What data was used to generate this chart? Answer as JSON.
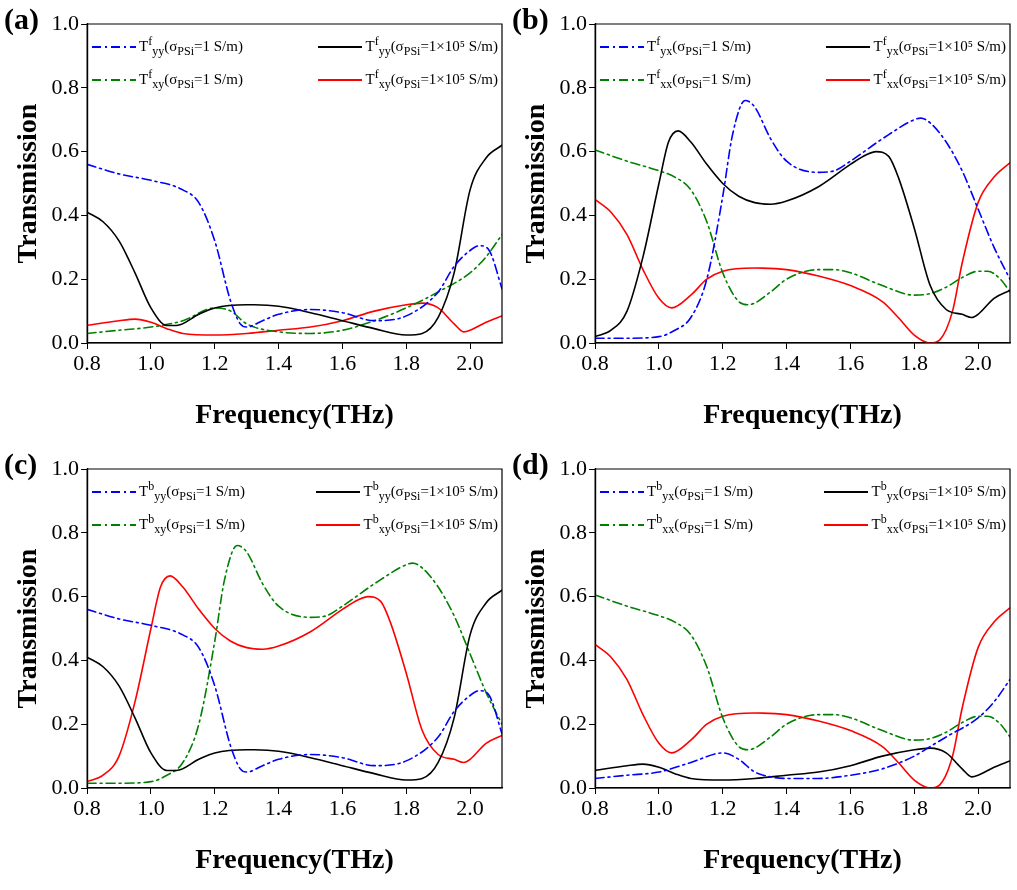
{
  "chart_data": [
    {
      "type": "line",
      "title": "(a)",
      "xlabel": "Frequency(THz)",
      "ylabel": "Transmission",
      "xlim": [
        0.8,
        2.1
      ],
      "ylim": [
        0,
        1
      ],
      "xticks": [
        {
          "value": 0.8,
          "label": "0.8"
        },
        {
          "value": 1,
          "label": "1.0"
        },
        {
          "value": 1.2,
          "label": "1.2"
        },
        {
          "value": 1.4,
          "label": "1.4"
        },
        {
          "value": 1.6,
          "label": "1.6"
        },
        {
          "value": 1.8,
          "label": "1.8"
        },
        {
          "value": 2,
          "label": "2.0"
        }
      ],
      "yticks": [
        {
          "value": 0,
          "label": "0.0"
        },
        {
          "value": 0.2,
          "label": "0.2"
        },
        {
          "value": 0.4,
          "label": "0.4"
        },
        {
          "value": 0.6,
          "label": "0.6"
        },
        {
          "value": 0.8,
          "label": "0.8"
        },
        {
          "value": 1,
          "label": "1.0"
        }
      ],
      "grid": false,
      "legend": "top",
      "marker": "none",
      "series": [
        {
          "name": "T$^{f}$$_{yy}$(σ$_{PSi}$=1 S/m)",
          "color": "#0000ff",
          "line_style": "dashed",
          "x": [
            0.8,
            0.9,
            1.0,
            1.1,
            1.15,
            1.2,
            1.25,
            1.28,
            1.3,
            1.35,
            1.4,
            1.5,
            1.6,
            1.7,
            1.8,
            1.9,
            1.95,
            2.0,
            2.03,
            2.06,
            2.1
          ],
          "values": [
            0.56,
            0.53,
            0.51,
            0.48,
            0.44,
            0.32,
            0.13,
            0.06,
            0.05,
            0.07,
            0.09,
            0.105,
            0.095,
            0.07,
            0.085,
            0.16,
            0.24,
            0.29,
            0.305,
            0.29,
            0.17
          ]
        },
        {
          "name": "T$^{f}$$_{yy}$(σ$_{PSi}$=1×10⁵ S/m)",
          "color": "#000000",
          "line_style": "solid",
          "x": [
            0.8,
            0.85,
            0.9,
            0.95,
            1.0,
            1.05,
            1.08,
            1.15,
            1.2,
            1.3,
            1.4,
            1.5,
            1.6,
            1.7,
            1.8,
            1.85,
            1.9,
            1.95,
            2.0,
            2.05,
            2.1
          ],
          "values": [
            0.41,
            0.38,
            0.32,
            0.22,
            0.11,
            0.055,
            0.055,
            0.09,
            0.11,
            0.12,
            0.115,
            0.095,
            0.07,
            0.045,
            0.025,
            0.03,
            0.08,
            0.22,
            0.48,
            0.58,
            0.62
          ]
        },
        {
          "name": "T$^{f}$$_{xy}$(σ$_{PSi}$=1 S/m)",
          "color": "#008000",
          "line_style": "dashed",
          "x": [
            0.8,
            0.9,
            1.0,
            1.1,
            1.2,
            1.25,
            1.3,
            1.4,
            1.5,
            1.6,
            1.7,
            1.8,
            1.9,
            2.0,
            2.05,
            2.1
          ],
          "values": [
            0.03,
            0.04,
            0.05,
            0.07,
            0.11,
            0.1,
            0.06,
            0.035,
            0.03,
            0.04,
            0.07,
            0.11,
            0.16,
            0.22,
            0.27,
            0.34
          ]
        },
        {
          "name": "T$^{f}$$_{xy}$(σ$_{PSi}$=1×10⁵ S/m)",
          "color": "#ff0000",
          "line_style": "solid",
          "x": [
            0.8,
            0.9,
            0.95,
            1.0,
            1.05,
            1.1,
            1.2,
            1.3,
            1.4,
            1.5,
            1.6,
            1.7,
            1.8,
            1.85,
            1.9,
            1.95,
            1.98,
            2.0,
            2.05,
            2.1
          ],
          "values": [
            0.055,
            0.07,
            0.075,
            0.065,
            0.045,
            0.03,
            0.025,
            0.03,
            0.04,
            0.05,
            0.07,
            0.1,
            0.12,
            0.125,
            0.11,
            0.06,
            0.035,
            0.04,
            0.065,
            0.085
          ]
        }
      ]
    },
    {
      "type": "line",
      "title": "(b)",
      "xlabel": "Frequency(THz)",
      "ylabel": "Transmission",
      "xlim": [
        0.8,
        2.1
      ],
      "ylim": [
        0,
        1
      ],
      "xticks": [
        {
          "value": 0.8,
          "label": "0.8"
        },
        {
          "value": 1,
          "label": "1.0"
        },
        {
          "value": 1.2,
          "label": "1.2"
        },
        {
          "value": 1.4,
          "label": "1.4"
        },
        {
          "value": 1.6,
          "label": "1.6"
        },
        {
          "value": 1.8,
          "label": "1.8"
        },
        {
          "value": 2,
          "label": "2.0"
        }
      ],
      "yticks": [
        {
          "value": 0,
          "label": "0.0"
        },
        {
          "value": 0.2,
          "label": "0.2"
        },
        {
          "value": 0.4,
          "label": "0.4"
        },
        {
          "value": 0.6,
          "label": "0.6"
        },
        {
          "value": 0.8,
          "label": "0.8"
        },
        {
          "value": 1,
          "label": "1.0"
        }
      ],
      "grid": false,
      "legend": "top",
      "marker": "none",
      "series": [
        {
          "name": "T$^{f}$$_{yx}$(σ$_{PSi}$=1 S/m)",
          "color": "#0000ff",
          "line_style": "dashed",
          "x": [
            0.8,
            0.9,
            1.0,
            1.05,
            1.1,
            1.15,
            1.2,
            1.23,
            1.27,
            1.3,
            1.35,
            1.4,
            1.5,
            1.55,
            1.6,
            1.7,
            1.8,
            1.82,
            1.85,
            1.9,
            1.95,
            2.0,
            2.05,
            2.1
          ],
          "values": [
            0.015,
            0.015,
            0.02,
            0.04,
            0.08,
            0.2,
            0.46,
            0.65,
            0.76,
            0.74,
            0.64,
            0.57,
            0.535,
            0.54,
            0.57,
            0.64,
            0.7,
            0.705,
            0.69,
            0.63,
            0.54,
            0.42,
            0.3,
            0.2
          ]
        },
        {
          "name": "T$^{f}$$_{yx}$(σ$_{PSi}$=1×10⁵ S/m)",
          "color": "#000000",
          "line_style": "solid",
          "x": [
            0.8,
            0.85,
            0.9,
            0.95,
            1.0,
            1.03,
            1.06,
            1.1,
            1.15,
            1.2,
            1.25,
            1.3,
            1.35,
            1.4,
            1.5,
            1.6,
            1.65,
            1.68,
            1.72,
            1.75,
            1.8,
            1.85,
            1.9,
            1.95,
            1.98,
            2.0,
            2.05,
            2.1
          ],
          "values": [
            0.02,
            0.04,
            0.1,
            0.27,
            0.5,
            0.63,
            0.665,
            0.63,
            0.56,
            0.5,
            0.46,
            0.44,
            0.435,
            0.445,
            0.49,
            0.56,
            0.59,
            0.6,
            0.585,
            0.52,
            0.36,
            0.18,
            0.105,
            0.09,
            0.08,
            0.09,
            0.14,
            0.165
          ]
        },
        {
          "name": "T$^{f}$$_{xx}$(σ$_{PSi}$=1 S/m)",
          "color": "#008000",
          "line_style": "dashed",
          "x": [
            0.8,
            0.9,
            1.0,
            1.05,
            1.1,
            1.15,
            1.2,
            1.25,
            1.28,
            1.35,
            1.4,
            1.5,
            1.55,
            1.6,
            1.7,
            1.8,
            1.85,
            1.9,
            1.95,
            2.0,
            2.03,
            2.07,
            2.1
          ],
          "values": [
            0.605,
            0.57,
            0.54,
            0.52,
            0.48,
            0.38,
            0.22,
            0.13,
            0.12,
            0.16,
            0.2,
            0.23,
            0.23,
            0.22,
            0.18,
            0.15,
            0.155,
            0.175,
            0.205,
            0.225,
            0.225,
            0.2,
            0.16
          ]
        },
        {
          "name": "T$^{f}$$_{xx}$(σ$_{PSi}$=1×10⁵ S/m)",
          "color": "#ff0000",
          "line_style": "solid",
          "x": [
            0.8,
            0.85,
            0.9,
            0.95,
            1.0,
            1.04,
            1.1,
            1.15,
            1.2,
            1.3,
            1.4,
            1.5,
            1.6,
            1.7,
            1.75,
            1.8,
            1.85,
            1.88,
            1.92,
            1.95,
            2.0,
            2.05,
            2.1
          ],
          "values": [
            0.45,
            0.41,
            0.34,
            0.23,
            0.14,
            0.11,
            0.15,
            0.2,
            0.225,
            0.235,
            0.23,
            0.21,
            0.18,
            0.13,
            0.08,
            0.025,
            0.0,
            0.01,
            0.1,
            0.25,
            0.44,
            0.52,
            0.565
          ]
        }
      ]
    },
    {
      "type": "line",
      "title": "(c)",
      "xlabel": "Frequency(THz)",
      "ylabel": "Transmission",
      "xlim": [
        0.8,
        2.1
      ],
      "ylim": [
        0,
        1
      ],
      "xticks": [
        {
          "value": 0.8,
          "label": "0.8"
        },
        {
          "value": 1,
          "label": "1.0"
        },
        {
          "value": 1.2,
          "label": "1.2"
        },
        {
          "value": 1.4,
          "label": "1.4"
        },
        {
          "value": 1.6,
          "label": "1.6"
        },
        {
          "value": 1.8,
          "label": "1.8"
        },
        {
          "value": 2,
          "label": "2.0"
        }
      ],
      "yticks": [
        {
          "value": 0,
          "label": "0.0"
        },
        {
          "value": 0.2,
          "label": "0.2"
        },
        {
          "value": 0.4,
          "label": "0.4"
        },
        {
          "value": 0.6,
          "label": "0.6"
        },
        {
          "value": 0.8,
          "label": "0.8"
        },
        {
          "value": 1,
          "label": "1.0"
        }
      ],
      "grid": false,
      "legend": "top",
      "marker": "none",
      "series": [
        {
          "name": "T$^{b}$$_{yy}$(σ$_{PSi}$=1 S/m)",
          "color": "#0000ff",
          "line_style": "dashed",
          "x": [
            0.8,
            0.9,
            1.0,
            1.1,
            1.15,
            1.2,
            1.25,
            1.28,
            1.3,
            1.35,
            1.4,
            1.5,
            1.6,
            1.7,
            1.8,
            1.9,
            1.95,
            2.0,
            2.03,
            2.06,
            2.1
          ],
          "values": [
            0.56,
            0.53,
            0.51,
            0.48,
            0.44,
            0.32,
            0.13,
            0.06,
            0.05,
            0.07,
            0.09,
            0.105,
            0.095,
            0.07,
            0.085,
            0.16,
            0.24,
            0.29,
            0.305,
            0.29,
            0.17
          ]
        },
        {
          "name": "T$^{b}$$_{yy}$(σ$_{PSi}$=1×10⁵ S/m)",
          "color": "#000000",
          "line_style": "solid",
          "x": [
            0.8,
            0.85,
            0.9,
            0.95,
            1.0,
            1.05,
            1.08,
            1.15,
            1.2,
            1.3,
            1.4,
            1.5,
            1.6,
            1.7,
            1.8,
            1.85,
            1.9,
            1.95,
            2.0,
            2.05,
            2.1
          ],
          "values": [
            0.41,
            0.38,
            0.32,
            0.22,
            0.11,
            0.055,
            0.055,
            0.09,
            0.11,
            0.12,
            0.115,
            0.095,
            0.07,
            0.045,
            0.025,
            0.03,
            0.08,
            0.22,
            0.48,
            0.58,
            0.62
          ]
        },
        {
          "name": "T$^{b}$$_{xy}$(σ$_{PSi}$=1 S/m)",
          "color": "#008000",
          "line_style": "dashed",
          "x": [
            0.8,
            0.9,
            1.0,
            1.05,
            1.1,
            1.15,
            1.2,
            1.23,
            1.27,
            1.3,
            1.35,
            1.4,
            1.5,
            1.55,
            1.6,
            1.7,
            1.8,
            1.82,
            1.85,
            1.9,
            1.95,
            2.0,
            2.05,
            2.1
          ],
          "values": [
            0.015,
            0.015,
            0.02,
            0.04,
            0.08,
            0.2,
            0.46,
            0.65,
            0.76,
            0.74,
            0.64,
            0.57,
            0.535,
            0.54,
            0.57,
            0.64,
            0.7,
            0.705,
            0.69,
            0.63,
            0.54,
            0.42,
            0.3,
            0.2
          ]
        },
        {
          "name": "T$^{b}$$_{xy}$(σ$_{PSi}$=1×10⁵ S/m)",
          "color": "#ff0000",
          "line_style": "solid",
          "x": [
            0.8,
            0.85,
            0.9,
            0.95,
            1.0,
            1.03,
            1.06,
            1.1,
            1.15,
            1.2,
            1.25,
            1.3,
            1.35,
            1.4,
            1.5,
            1.6,
            1.65,
            1.68,
            1.72,
            1.75,
            1.8,
            1.85,
            1.9,
            1.95,
            1.98,
            2.0,
            2.05,
            2.1
          ],
          "values": [
            0.02,
            0.04,
            0.1,
            0.27,
            0.5,
            0.63,
            0.665,
            0.63,
            0.56,
            0.5,
            0.46,
            0.44,
            0.435,
            0.445,
            0.49,
            0.56,
            0.59,
            0.6,
            0.585,
            0.52,
            0.36,
            0.18,
            0.105,
            0.09,
            0.08,
            0.09,
            0.14,
            0.165
          ]
        }
      ]
    },
    {
      "type": "line",
      "title": "(d)",
      "xlabel": "Frequency(THz)",
      "ylabel": "Transmission",
      "xlim": [
        0.8,
        2.1
      ],
      "ylim": [
        0,
        1
      ],
      "xticks": [
        {
          "value": 0.8,
          "label": "0.8"
        },
        {
          "value": 1,
          "label": "1.0"
        },
        {
          "value": 1.2,
          "label": "1.2"
        },
        {
          "value": 1.4,
          "label": "1.4"
        },
        {
          "value": 1.6,
          "label": "1.6"
        },
        {
          "value": 1.8,
          "label": "1.8"
        },
        {
          "value": 2,
          "label": "2.0"
        }
      ],
      "yticks": [
        {
          "value": 0,
          "label": "0.0"
        },
        {
          "value": 0.2,
          "label": "0.2"
        },
        {
          "value": 0.4,
          "label": "0.4"
        },
        {
          "value": 0.6,
          "label": "0.6"
        },
        {
          "value": 0.8,
          "label": "0.8"
        },
        {
          "value": 1,
          "label": "1.0"
        }
      ],
      "grid": false,
      "legend": "top",
      "marker": "none",
      "series": [
        {
          "name": "T$^{b}$$_{yx}$(σ$_{PSi}$=1 S/m)",
          "color": "#0000ff",
          "line_style": "dashed",
          "x": [
            0.8,
            0.9,
            1.0,
            1.1,
            1.2,
            1.25,
            1.3,
            1.35,
            1.4,
            1.5,
            1.6,
            1.7,
            1.8,
            1.85,
            1.9,
            2.0,
            2.05,
            2.1
          ],
          "values": [
            0.03,
            0.04,
            0.05,
            0.08,
            0.11,
            0.09,
            0.05,
            0.035,
            0.03,
            0.03,
            0.04,
            0.06,
            0.1,
            0.13,
            0.16,
            0.22,
            0.27,
            0.34
          ]
        },
        {
          "name": "T$^{b}$$_{yx}$(σ$_{PSi}$=1×10⁵ S/m)",
          "color": "#000000",
          "line_style": "solid",
          "x": [
            0.8,
            0.9,
            0.95,
            1.0,
            1.05,
            1.1,
            1.2,
            1.3,
            1.4,
            1.5,
            1.6,
            1.7,
            1.8,
            1.85,
            1.9,
            1.95,
            1.98,
            2.0,
            2.05,
            2.1
          ],
          "values": [
            0.055,
            0.07,
            0.075,
            0.065,
            0.045,
            0.03,
            0.025,
            0.03,
            0.04,
            0.05,
            0.07,
            0.1,
            0.12,
            0.125,
            0.11,
            0.06,
            0.035,
            0.04,
            0.065,
            0.085
          ]
        },
        {
          "name": "T$^{b}$$_{xx}$(σ$_{PSi}$=1 S/m)",
          "color": "#008000",
          "line_style": "dashed",
          "x": [
            0.8,
            0.9,
            1.0,
            1.05,
            1.1,
            1.15,
            1.2,
            1.25,
            1.28,
            1.35,
            1.4,
            1.5,
            1.55,
            1.6,
            1.7,
            1.8,
            1.85,
            1.9,
            1.95,
            2.0,
            2.03,
            2.07,
            2.1
          ],
          "values": [
            0.605,
            0.57,
            0.54,
            0.52,
            0.48,
            0.38,
            0.22,
            0.13,
            0.12,
            0.16,
            0.2,
            0.23,
            0.23,
            0.22,
            0.18,
            0.15,
            0.155,
            0.175,
            0.205,
            0.225,
            0.225,
            0.2,
            0.16
          ]
        },
        {
          "name": "T$^{b}$$_{xx}$(σ$_{PSi}$=1×10⁵ S/m)",
          "color": "#ff0000",
          "line_style": "solid",
          "x": [
            0.8,
            0.85,
            0.9,
            0.95,
            1.0,
            1.04,
            1.1,
            1.15,
            1.2,
            1.3,
            1.4,
            1.5,
            1.6,
            1.7,
            1.75,
            1.8,
            1.85,
            1.88,
            1.92,
            1.95,
            2.0,
            2.05,
            2.1
          ],
          "values": [
            0.45,
            0.41,
            0.34,
            0.23,
            0.14,
            0.11,
            0.15,
            0.2,
            0.225,
            0.235,
            0.23,
            0.21,
            0.18,
            0.13,
            0.08,
            0.025,
            0.0,
            0.01,
            0.1,
            0.25,
            0.44,
            0.52,
            0.565
          ]
        }
      ]
    }
  ]
}
